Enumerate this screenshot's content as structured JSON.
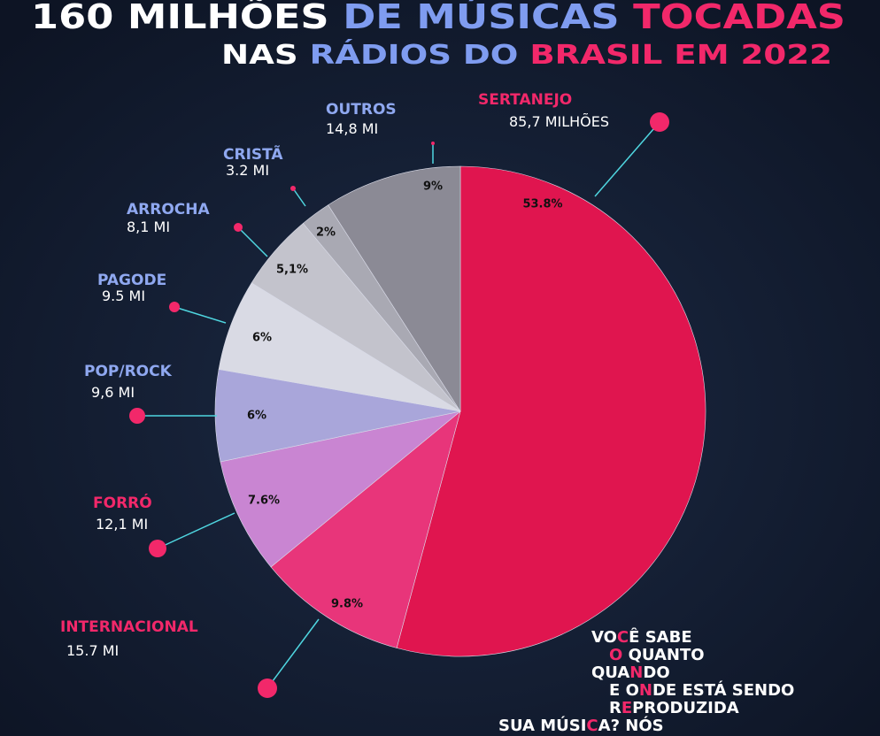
{
  "chart_data": {
    "type": "pie",
    "title_lines": [
      [
        {
          "text": "160 MILHÕES ",
          "color": "#ffffff"
        },
        {
          "text": "DE MÚSICAS ",
          "color": "#7f9cf0"
        },
        {
          "text": "TOCADAS",
          "color": "#f2286a"
        }
      ],
      [
        {
          "text": "NAS ",
          "color": "#ffffff"
        },
        {
          "text": "RÁDIOS DO ",
          "color": "#7f9cf0"
        },
        {
          "text": "BRASIL EM 2022",
          "color": "#f2286a"
        }
      ]
    ],
    "categories": [
      "SERTANEJO",
      "INTERNACIONAL",
      "FORRÓ",
      "POP/ROCK",
      "PAGODE",
      "ARROCHA",
      "CRISTÃ",
      "OUTROS"
    ],
    "values": [
      53.8,
      9.8,
      7.6,
      6,
      6,
      5.1,
      2,
      9
    ],
    "value_labels": [
      "53.8%",
      "9.8%",
      "7.6%",
      "6%",
      "6%",
      "5,1%",
      "2%",
      "9%"
    ],
    "amount_labels": [
      "85,7 MILHÕES",
      "15.7 MI",
      "12,1 MI",
      "9,6 MI",
      "9.5 MI",
      "8,1 MI",
      "3.2 MI",
      "14,8 MI"
    ],
    "colors": [
      "#e0154f",
      "#e8357a",
      "#c985d2",
      "#a9a6da",
      "#d9dae4",
      "#c3c3cc",
      "#a9a9b3",
      "#8b8a95"
    ],
    "label_colors": [
      "#f2286a",
      "#f2286a",
      "#f2286a",
      "#8fa8f0",
      "#8fa8f0",
      "#8fa8f0",
      "#8fa8f0",
      "#8fa8f0"
    ],
    "message": [
      [
        {
          "text": "VO",
          "color": "#ffffff"
        },
        {
          "text": "C",
          "color": "#f2286a"
        },
        {
          "text": "Ê SABE",
          "color": "#ffffff"
        }
      ],
      [
        {
          "text": "O",
          "color": "#f2286a"
        },
        {
          "text": " QUANTO",
          "color": "#ffffff"
        }
      ],
      [
        {
          "text": "QUA",
          "color": "#ffffff"
        },
        {
          "text": "N",
          "color": "#f2286a"
        },
        {
          "text": "DO",
          "color": "#ffffff"
        }
      ],
      [
        {
          "text": "E O",
          "color": "#ffffff"
        },
        {
          "text": "N",
          "color": "#f2286a"
        },
        {
          "text": "DE ESTÁ SENDO",
          "color": "#ffffff"
        }
      ],
      [
        {
          "text": "R",
          "color": "#ffffff"
        },
        {
          "text": "E",
          "color": "#f2286a"
        },
        {
          "text": "PRODUZIDA",
          "color": "#ffffff"
        }
      ],
      [
        {
          "text": "SUA MÚSI",
          "color": "#ffffff"
        },
        {
          "text": "C",
          "color": "#f2286a"
        },
        {
          "text": "A? NÓS",
          "color": "#ffffff"
        }
      ]
    ]
  }
}
